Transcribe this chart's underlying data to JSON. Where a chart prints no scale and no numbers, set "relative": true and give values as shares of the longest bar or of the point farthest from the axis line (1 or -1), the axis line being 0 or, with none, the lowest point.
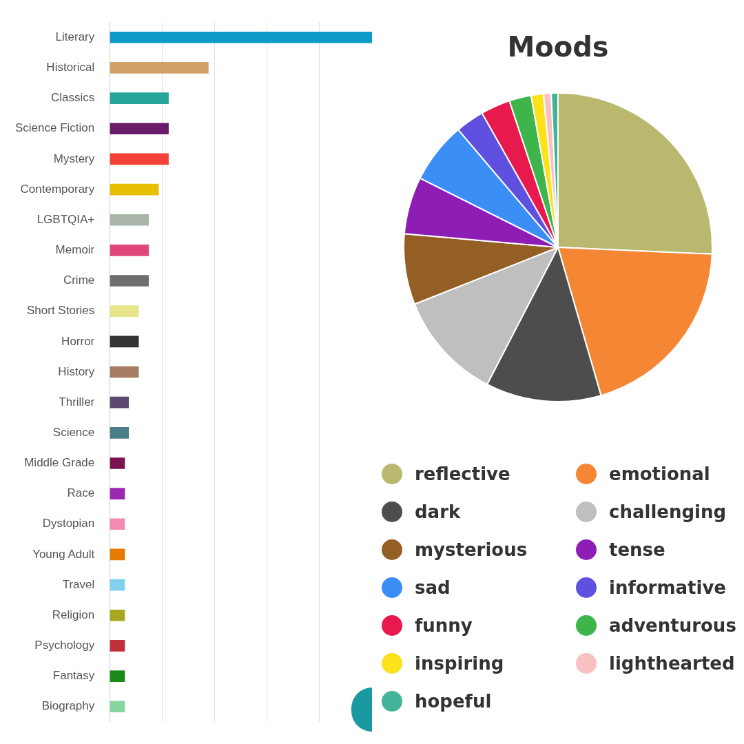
{
  "chart_data": [
    {
      "type": "bar",
      "orientation": "horizontal",
      "relative": true,
      "grid": "x",
      "categories": [
        "Literary",
        "Historical",
        "Classics",
        "Science Fiction",
        "Mystery",
        "Contemporary",
        "LGBTQIA+",
        "Memoir",
        "Crime",
        "Short Stories",
        "Horror",
        "History",
        "Thriller",
        "Science",
        "Middle Grade",
        "Race",
        "Dystopian",
        "Young Adult",
        "Travel",
        "Religion",
        "Psychology",
        "Fantasy",
        "Biography"
      ],
      "values": [
        1,
        0.376,
        0.224,
        0.224,
        0.224,
        0.186,
        0.148,
        0.148,
        0.148,
        0.11,
        0.11,
        0.11,
        0.072,
        0.072,
        0.057,
        0.057,
        0.057,
        0.057,
        0.057,
        0.057,
        0.057,
        0.057,
        0.057
      ],
      "colors": [
        "#0e9ac8",
        "#d4a06a",
        "#26a69a",
        "#6a1b6a",
        "#f44336",
        "#e6c000",
        "#a8b5a8",
        "#e0487a",
        "#6e6e6e",
        "#e8e48a",
        "#333333",
        "#a67c62",
        "#5e4a6e",
        "#4a7f8a",
        "#7a1250",
        "#9c27b0",
        "#f08cb0",
        "#e67a00",
        "#80d0f0",
        "#a8a820",
        "#c0303a",
        "#1a8a1a",
        "#88d4a0"
      ]
    },
    {
      "type": "pie",
      "title": "Moods",
      "legend": "bottom",
      "categories": [
        "reflective",
        "emotional",
        "dark",
        "challenging",
        "mysterious",
        "tense",
        "sad",
        "informative",
        "funny",
        "adventurous",
        "inspiring",
        "lighthearted",
        "hopeful"
      ],
      "values": [
        25.7,
        19.8,
        12.1,
        11.4,
        7.4,
        6.0,
        6.4,
        3.0,
        3.1,
        2.3,
        1.3,
        0.8,
        0.7
      ],
      "colors": [
        "#b9b86e",
        "#f58634",
        "#4d4d4d",
        "#bfbfbf",
        "#945f24",
        "#8e1db5",
        "#3a8ef5",
        "#6050e0",
        "#e8194c",
        "#3db54a",
        "#fbe21a",
        "#f8c0c0",
        "#45b39a"
      ]
    }
  ]
}
